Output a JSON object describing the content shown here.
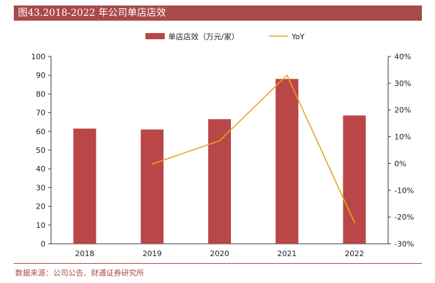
{
  "title": "图43.2018-2022 年公司单店店效",
  "source": "数据来源：公司公告、财通证券研究所",
  "chart_data": {
    "type": "bar",
    "categories": [
      "2018",
      "2019",
      "2020",
      "2021",
      "2022"
    ],
    "series": [
      {
        "name": "单店店效（万元/家）",
        "type": "bar",
        "axis": "left",
        "color": "#b94747",
        "values": [
          61.5,
          61.0,
          66.5,
          88.0,
          68.5
        ]
      },
      {
        "name": "YoY",
        "type": "line",
        "axis": "right",
        "color": "#e6a41e",
        "values": [
          null,
          -0.2,
          8.5,
          33.0,
          -22.0
        ]
      }
    ],
    "ylim": [
      0,
      100
    ],
    "y_ticks": [
      "0",
      "10",
      "20",
      "30",
      "40",
      "50",
      "60",
      "70",
      "80",
      "90",
      "100"
    ],
    "y2lim": [
      -30,
      40
    ],
    "y2_ticks": [
      "-30%",
      "-20%",
      "-10%",
      "0%",
      "10%",
      "20%",
      "30%",
      "40%"
    ],
    "legend_position": "top-center",
    "grid": false
  }
}
